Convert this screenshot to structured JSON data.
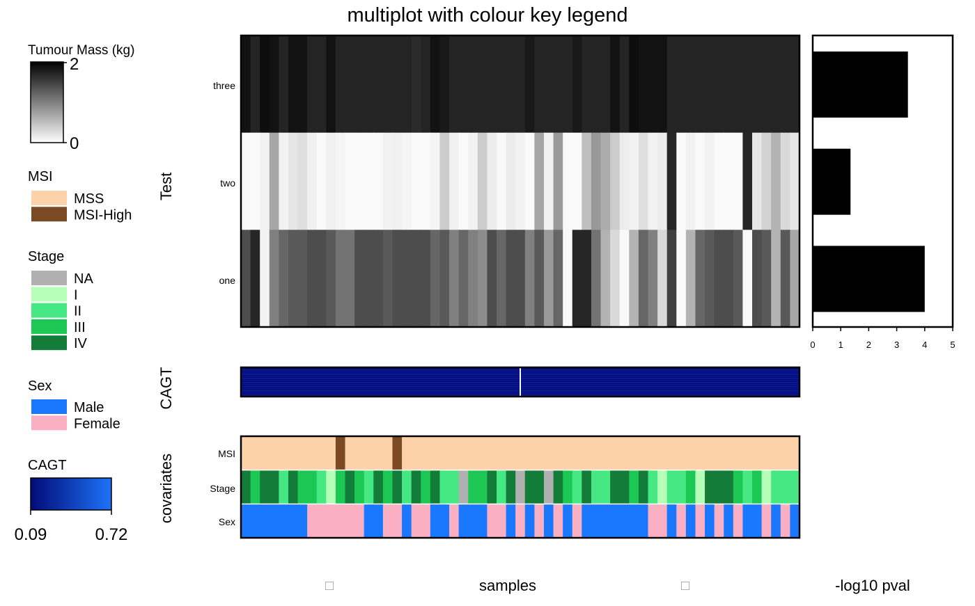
{
  "title": "multiplot with colour key legend",
  "legends": {
    "tumour": {
      "title": "Tumour Mass (kg)",
      "max_label": "2",
      "min_label": "0"
    },
    "msi": {
      "title": "MSI",
      "items": [
        {
          "label": "MSS",
          "color": "#FDD2AA"
        },
        {
          "label": "MSI-High",
          "color": "#7B4A25"
        }
      ]
    },
    "stage": {
      "title": "Stage",
      "items": [
        {
          "label": "NA",
          "color": "#B0B0B0"
        },
        {
          "label": "I",
          "color": "#B5FFB9"
        },
        {
          "label": "II",
          "color": "#45E883"
        },
        {
          "label": "III",
          "color": "#1DC753"
        },
        {
          "label": "IV",
          "color": "#137C39"
        }
      ]
    },
    "sex": {
      "title": "Sex",
      "items": [
        {
          "label": "Male",
          "color": "#1A78FF"
        },
        {
          "label": "Female",
          "color": "#FAAFC2"
        }
      ]
    },
    "cagt": {
      "title": "CAGT",
      "min_label": "0.09",
      "max_label": "0.72",
      "color_low": "#020B78",
      "color_high": "#1E73F8"
    }
  },
  "panel_labels": {
    "test": "Test",
    "cagt": "CAGT",
    "covariates": "covariates"
  },
  "row_labels": {
    "three": "three",
    "two": "two",
    "one": "one",
    "msi": "MSI",
    "stage": "Stage",
    "sex": "Sex"
  },
  "x_label": "samples",
  "bar_axis_label": "-log10 pval",
  "bar_ticks": [
    "0",
    "1",
    "2",
    "3",
    "4",
    "5"
  ],
  "placeholder_glyph": "□",
  "chart_data": [
    {
      "type": "heatmap",
      "name": "Test",
      "rows": [
        "three",
        "two",
        "one"
      ],
      "color_scale": {
        "low": 0,
        "high": 2,
        "low_color": "#ffffff",
        "high_color": "#000000"
      },
      "values": [
        [
          1.86,
          1.72,
          1.9,
          1.86,
          1.72,
          1.86,
          1.86,
          1.72,
          1.72,
          1.86,
          1.72,
          1.72,
          1.72,
          1.72,
          1.72,
          1.72,
          1.72,
          1.72,
          1.66,
          1.72,
          1.86,
          1.8,
          1.72,
          1.72,
          1.72,
          1.72,
          1.72,
          1.72,
          1.72,
          1.72,
          1.8,
          1.72,
          1.72,
          1.72,
          1.72,
          1.8,
          1.72,
          1.72,
          1.72,
          1.86,
          1.72,
          1.9,
          1.86,
          1.86,
          1.86,
          1.72,
          1.72,
          1.72,
          1.72,
          1.72,
          1.72,
          1.72,
          1.72,
          1.72,
          1.72,
          1.72,
          1.72,
          1.72,
          1.72
        ],
        [
          0.05,
          0.05,
          0.1,
          0.7,
          0.1,
          0.2,
          0.25,
          0.12,
          0.05,
          0.12,
          0.08,
          0.05,
          0.05,
          0.05,
          0.05,
          0.1,
          0.12,
          0.08,
          0.05,
          0.05,
          0.08,
          0.4,
          0.12,
          0.05,
          0.1,
          0.4,
          0.15,
          0.05,
          0.15,
          0.1,
          0.05,
          0.7,
          0.1,
          0.8,
          0.05,
          0.05,
          0.5,
          0.8,
          0.65,
          0.4,
          0.15,
          0.1,
          0.25,
          0.1,
          0.15,
          1.7,
          0.05,
          0.1,
          0.05,
          0.1,
          0.05,
          0.05,
          0.05,
          1.7,
          0.2,
          0.35,
          0.6,
          0.3,
          0.2
        ],
        [
          1.4,
          1.7,
          0.1,
          1.0,
          1.2,
          1.3,
          1.3,
          1.4,
          1.4,
          1.3,
          1.1,
          1.1,
          1.4,
          1.4,
          1.4,
          1.3,
          1.4,
          1.4,
          1.4,
          1.4,
          1.2,
          1.3,
          1.0,
          1.2,
          1.0,
          0.9,
          1.4,
          1.2,
          1.4,
          1.4,
          1.0,
          1.3,
          0.8,
          1.2,
          0.05,
          1.7,
          1.7,
          1.1,
          0.6,
          0.3,
          0.05,
          0.6,
          1.2,
          1.0,
          0.3,
          1.5,
          0.05,
          0.6,
          1.2,
          1.3,
          1.4,
          1.4,
          1.3,
          0.05,
          1.4,
          1.3,
          0.6,
          1.3,
          0.7
        ]
      ]
    },
    {
      "type": "bar",
      "name": "-log10 pval",
      "orientation": "horizontal",
      "categories": [
        "three",
        "two",
        "one"
      ],
      "values": [
        3.4,
        1.35,
        4.0
      ],
      "xlim": [
        0,
        5
      ],
      "xlabel": "-log10 pval"
    },
    {
      "type": "heatmap",
      "name": "CAGT",
      "color_scale": {
        "low": 0.09,
        "high": 0.72
      },
      "rows": 1,
      "highlight_column_fraction": 0.5,
      "highlight_color": "#ffffff"
    },
    {
      "type": "heatmap",
      "name": "covariates",
      "n_samples": 59,
      "MSI": [
        "MSS",
        "MSS",
        "MSS",
        "MSS",
        "MSS",
        "MSS",
        "MSS",
        "MSS",
        "MSS",
        "MSS",
        "MSI-High",
        "MSS",
        "MSS",
        "MSS",
        "MSS",
        "MSS",
        "MSI-High",
        "MSS",
        "MSS",
        "MSS",
        "MSS",
        "MSS",
        "MSS",
        "MSS",
        "MSS",
        "MSS",
        "MSS",
        "MSS",
        "MSS",
        "MSS",
        "MSS",
        "MSS",
        "MSS",
        "MSS",
        "MSS",
        "MSS",
        "MSS",
        "MSS",
        "MSS",
        "MSS",
        "MSS",
        "MSS",
        "MSS",
        "MSS",
        "MSS",
        "MSS",
        "MSS",
        "MSS",
        "MSS",
        "MSS",
        "MSS",
        "MSS",
        "MSS",
        "MSS",
        "MSS",
        "MSS",
        "MSS",
        "MSS",
        "MSS"
      ],
      "Stage": [
        "IV",
        "III",
        "IV",
        "IV",
        "II",
        "IV",
        "III",
        "III",
        "II",
        "I",
        "III",
        "IV",
        "III",
        "II",
        "IV",
        "III",
        "IV",
        "II",
        "IV",
        "III",
        "IV",
        "II",
        "II",
        "NA",
        "III",
        "III",
        "IV",
        "II",
        "IV",
        "NA",
        "IV",
        "IV",
        "NA",
        "IV",
        "III",
        "II",
        "IV",
        "II",
        "II",
        "IV",
        "IV",
        "III",
        "IV",
        "II",
        "I",
        "II",
        "II",
        "III",
        "I",
        "IV",
        "IV",
        "IV",
        "III",
        "II",
        "III",
        "I",
        "II",
        "II",
        "II"
      ],
      "Sex": [
        "Male",
        "Male",
        "Male",
        "Male",
        "Male",
        "Male",
        "Male",
        "Female",
        "Female",
        "Female",
        "Female",
        "Female",
        "Female",
        "Male",
        "Male",
        "Female",
        "Female",
        "Male",
        "Female",
        "Female",
        "Male",
        "Male",
        "Female",
        "Male",
        "Male",
        "Male",
        "Female",
        "Female",
        "Male",
        "Female",
        "Male",
        "Female",
        "Male",
        "Female",
        "Male",
        "Female",
        "Male",
        "Male",
        "Male",
        "Male",
        "Male",
        "Male",
        "Male",
        "Female",
        "Female",
        "Male",
        "Female",
        "Male",
        "Female",
        "Male",
        "Female",
        "Male",
        "Female",
        "Male",
        "Male",
        "Female",
        "Male",
        "Female",
        "Male"
      ],
      "colors": {
        "MSI": {
          "MSS": "#FDD2AA",
          "MSI-High": "#7B4A25"
        },
        "Stage": {
          "NA": "#B0B0B0",
          "I": "#B5FFB9",
          "II": "#45E883",
          "III": "#1DC753",
          "IV": "#137C39"
        },
        "Sex": {
          "Male": "#1A78FF",
          "Female": "#FAAFC2"
        }
      }
    }
  ]
}
